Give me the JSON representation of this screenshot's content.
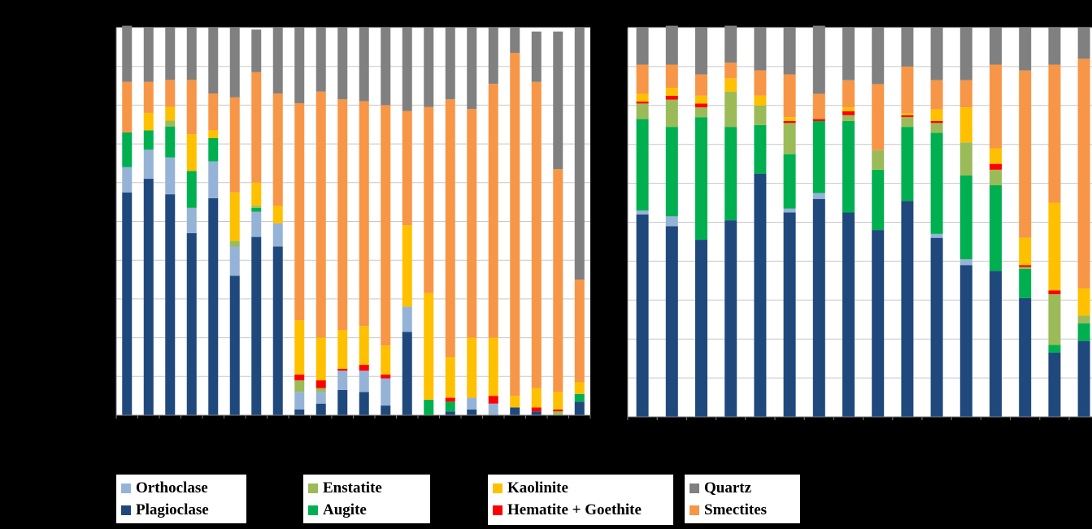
{
  "colors": {
    "Plagioclase": "#1f497d",
    "Orthoclase": "#95b3d7",
    "Augite": "#00b050",
    "Enstatite": "#9bbb59",
    "Hematite + Goethite": "#ff0000",
    "Kaolinite": "#ffc000",
    "Smectites": "#f79646",
    "Quartz": "#808080"
  },
  "legend": {
    "col1": [
      "Orthoclase",
      "Plagioclase"
    ],
    "col2": [
      "Enstatite",
      "Augite"
    ],
    "col3": [
      "Kaolinite",
      "Hematite + Goethite"
    ],
    "col4": [
      "Quartz",
      "Smectites"
    ]
  },
  "chart_data": [
    {
      "type": "bar",
      "stacked": true,
      "title": "",
      "xlabel": "",
      "ylabel": "",
      "ylim": [
        0,
        100
      ],
      "y_tick_label": "%",
      "stack_order": [
        "Plagioclase",
        "Orthoclase",
        "Augite",
        "Enstatite",
        "Hematite + Goethite",
        "Kaolinite",
        "Smectites",
        "Quartz"
      ],
      "series": [
        {
          "name": "Plagioclase",
          "values": [
            57.5,
            61,
            57,
            47,
            56,
            36,
            46,
            43.5,
            1.5,
            3,
            6.5,
            6,
            2.5,
            21.5,
            0,
            1,
            1.5,
            0,
            2,
            1,
            0,
            3.5
          ]
        },
        {
          "name": "Orthoclase",
          "values": [
            6.5,
            7.5,
            9.5,
            6.5,
            9.5,
            7.5,
            6.5,
            6,
            4.5,
            3,
            5,
            5.5,
            7,
            6.5,
            0,
            0,
            3,
            3,
            0,
            0,
            0,
            0
          ]
        },
        {
          "name": "Augite",
          "values": [
            9,
            5,
            8,
            9.5,
            6,
            0,
            1,
            0,
            0,
            0,
            0,
            0,
            0,
            0,
            4,
            2.5,
            0,
            0,
            0,
            0,
            0,
            2
          ]
        },
        {
          "name": "Enstatite",
          "values": [
            0,
            0,
            1.5,
            0,
            0,
            1.5,
            0.5,
            0,
            3,
            1,
            0,
            0,
            0,
            0,
            0,
            0,
            0,
            0,
            0,
            0,
            1,
            0
          ]
        },
        {
          "name": "Hematite + Goethite",
          "values": [
            0,
            0,
            0,
            0,
            0,
            0,
            0,
            0,
            1.5,
            2,
            0.5,
            1.5,
            1,
            0,
            0,
            1,
            0,
            2,
            0,
            1,
            0.5,
            0
          ]
        },
        {
          "name": "Kaolinite",
          "values": [
            0,
            4.5,
            3.5,
            9.5,
            2,
            12.5,
            6,
            4.5,
            14,
            11,
            10,
            10,
            7.5,
            21,
            27.5,
            10.5,
            15.5,
            15,
            3,
            5,
            4.5,
            3
          ]
        },
        {
          "name": "Smectites",
          "values": [
            13,
            8,
            7,
            14,
            9.5,
            24.5,
            28.5,
            29,
            56,
            63.5,
            59.5,
            58,
            62,
            29.5,
            48,
            66.5,
            59,
            65.5,
            88.5,
            79,
            57.5,
            26.5
          ]
        },
        {
          "name": "Quartz",
          "values": [
            14.5,
            14,
            13.5,
            13.5,
            17,
            18,
            11,
            17,
            19.5,
            16.5,
            18.5,
            19,
            20,
            21.5,
            20.5,
            18.5,
            21,
            14.5,
            6.5,
            13,
            35.5,
            65
          ]
        }
      ]
    },
    {
      "type": "bar",
      "stacked": true,
      "title": "",
      "xlabel": "",
      "ylabel": "",
      "ylim": [
        0,
        100
      ],
      "y_tick_label": "%",
      "stack_order": [
        "Plagioclase",
        "Orthoclase",
        "Augite",
        "Enstatite",
        "Hematite + Goethite",
        "Kaolinite",
        "Smectites",
        "Quartz"
      ],
      "series": [
        {
          "name": "Plagioclase",
          "values": [
            52,
            49,
            45.5,
            50.5,
            62.5,
            52.5,
            56,
            52.5,
            48,
            55.5,
            46,
            39,
            37.5,
            30.5,
            16.5,
            19.5
          ]
        },
        {
          "name": "Orthoclase",
          "values": [
            1,
            2.5,
            0,
            0,
            0,
            1,
            1.5,
            0,
            0,
            0,
            1,
            1.5,
            0,
            0,
            0,
            0
          ]
        },
        {
          "name": "Augite",
          "values": [
            23.5,
            23,
            31.5,
            24,
            12.5,
            14,
            18.5,
            23.5,
            15.5,
            19,
            26,
            21.5,
            22,
            7.5,
            2,
            4.5
          ]
        },
        {
          "name": "Enstatite",
          "values": [
            4,
            7,
            2.5,
            9,
            5,
            8,
            0,
            1.5,
            5,
            2.5,
            2.5,
            8.5,
            4,
            0.5,
            13,
            2
          ]
        },
        {
          "name": "Hematite + Goethite",
          "values": [
            0.5,
            1,
            1,
            0,
            0,
            0.5,
            0.5,
            1,
            0,
            0.5,
            0.5,
            0,
            1.5,
            0.5,
            1,
            0
          ]
        },
        {
          "name": "Kaolinite",
          "values": [
            2,
            2,
            2,
            3.5,
            2.5,
            1,
            0,
            1,
            0,
            0.5,
            3,
            9,
            4,
            7,
            22.5,
            7
          ]
        },
        {
          "name": "Smectites",
          "values": [
            7.5,
            6,
            5.5,
            4,
            6.5,
            11,
            6.5,
            7,
            17,
            12,
            7.5,
            7,
            21.5,
            43,
            35.5,
            59
          ]
        },
        {
          "name": "Quartz",
          "values": [
            9.5,
            10,
            12,
            9.5,
            11,
            12,
            17.5,
            13.5,
            14.5,
            10,
            13.5,
            13.5,
            9.5,
            11,
            9.5,
            8
          ]
        }
      ]
    }
  ]
}
